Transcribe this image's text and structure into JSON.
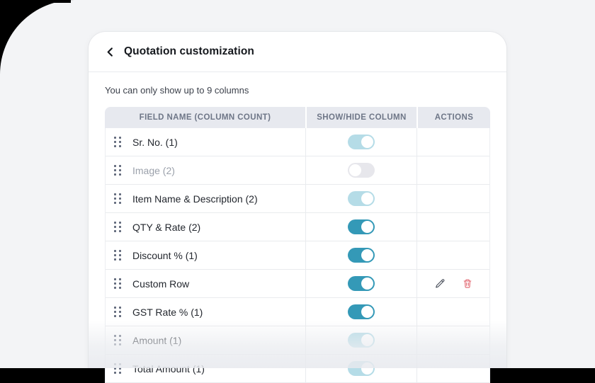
{
  "header": {
    "back_icon": "chevron-left",
    "title": "Quotation customization"
  },
  "note": "You can only show up to 9 columns",
  "table": {
    "headers": [
      "FIELD NAME (COLUMN COUNT)",
      "SHOW/HIDE COLUMN",
      "ACTIONS"
    ],
    "rows": [
      {
        "label": "Sr. No. (1)",
        "toggle": "pale-on",
        "muted": false,
        "actions": []
      },
      {
        "label": "Image (2)",
        "toggle": "off",
        "muted": true,
        "actions": []
      },
      {
        "label": "Item Name & Description (2)",
        "toggle": "pale-on",
        "muted": false,
        "actions": []
      },
      {
        "label": "QTY & Rate (2)",
        "toggle": "on",
        "muted": false,
        "actions": []
      },
      {
        "label": "Discount % (1)",
        "toggle": "on",
        "muted": false,
        "actions": []
      },
      {
        "label": "Custom Row",
        "toggle": "on",
        "muted": false,
        "actions": [
          "edit",
          "delete"
        ]
      },
      {
        "label": "GST Rate % (1)",
        "toggle": "on",
        "muted": false,
        "actions": []
      },
      {
        "label": "Amount (1)",
        "toggle": "pale-on",
        "muted": false,
        "actions": []
      },
      {
        "label": "Total Amount (1)",
        "toggle": "pale-on",
        "muted": false,
        "actions": []
      }
    ]
  },
  "colors": {
    "accent": "#3499b7",
    "accent_pale": "#b5dce7",
    "toggle_off": "#e7e7ec",
    "danger": "#e0606a",
    "edit_icon": "#454b57",
    "thead_bg": "#e7e9ef",
    "page_bg": "#f3f4f6",
    "card_bg": "#ffffff"
  }
}
